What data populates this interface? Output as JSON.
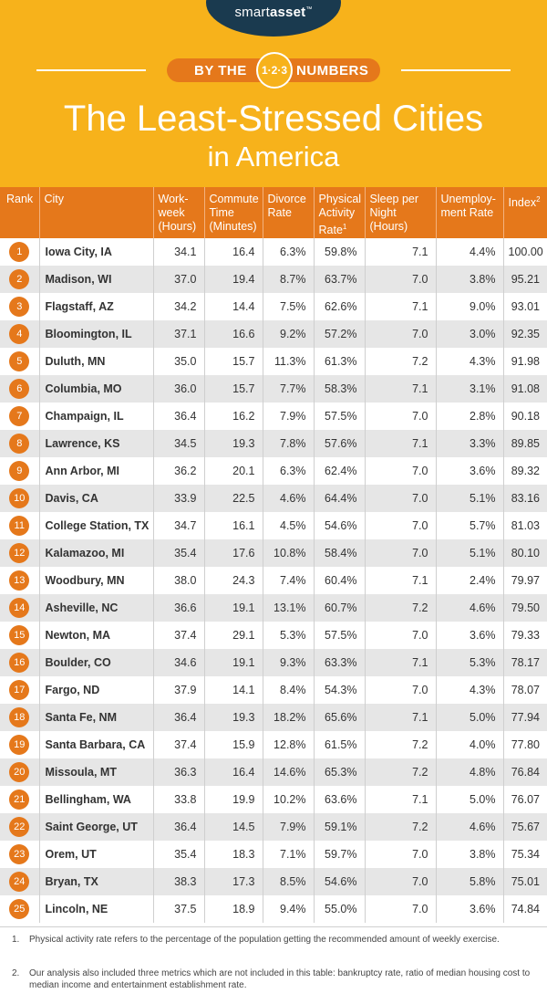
{
  "brand": {
    "name_light": "smart",
    "name_bold": "asset",
    "tm": "™"
  },
  "banner": {
    "left": "BY THE",
    "badge": "1·2·3",
    "right": "NUMBERS"
  },
  "title": {
    "line1": "The Least-Stressed Cities",
    "line2": "in America"
  },
  "colors": {
    "header_bg": "#f7b21b",
    "accent": "#e5781b",
    "logo_bg": "#1a3a4f",
    "row_alt": "#e6e6e6"
  },
  "chart_data": {
    "type": "table",
    "columns": [
      {
        "label": "Rank"
      },
      {
        "label": "City"
      },
      {
        "label": "Work-week (Hours)"
      },
      {
        "label": "Commute Time (Minutes)"
      },
      {
        "label": "Divorce Rate"
      },
      {
        "label": "Physical Activity Rate",
        "sup": "1"
      },
      {
        "label": "Sleep per Night (Hours)"
      },
      {
        "label": "Unemploy-ment Rate"
      },
      {
        "label": "Index",
        "sup": "2"
      }
    ],
    "rows": [
      [
        "1",
        "Iowa City, IA",
        "34.1",
        "16.4",
        "6.3%",
        "59.8%",
        "7.1",
        "4.4%",
        "100.00"
      ],
      [
        "2",
        "Madison, WI",
        "37.0",
        "19.4",
        "8.7%",
        "63.7%",
        "7.0",
        "3.8%",
        "95.21"
      ],
      [
        "3",
        "Flagstaff, AZ",
        "34.2",
        "14.4",
        "7.5%",
        "62.6%",
        "7.1",
        "9.0%",
        "93.01"
      ],
      [
        "4",
        "Bloomington, IL",
        "37.1",
        "16.6",
        "9.2%",
        "57.2%",
        "7.0",
        "3.0%",
        "92.35"
      ],
      [
        "5",
        "Duluth, MN",
        "35.0",
        "15.7",
        "11.3%",
        "61.3%",
        "7.2",
        "4.3%",
        "91.98"
      ],
      [
        "6",
        "Columbia, MO",
        "36.0",
        "15.7",
        "7.7%",
        "58.3%",
        "7.1",
        "3.1%",
        "91.08"
      ],
      [
        "7",
        "Champaign, IL",
        "36.4",
        "16.2",
        "7.9%",
        "57.5%",
        "7.0",
        "2.8%",
        "90.18"
      ],
      [
        "8",
        "Lawrence, KS",
        "34.5",
        "19.3",
        "7.8%",
        "57.6%",
        "7.1",
        "3.3%",
        "89.85"
      ],
      [
        "9",
        "Ann Arbor, MI",
        "36.2",
        "20.1",
        "6.3%",
        "62.4%",
        "7.0",
        "3.6%",
        "89.32"
      ],
      [
        "10",
        "Davis, CA",
        "33.9",
        "22.5",
        "4.6%",
        "64.4%",
        "7.0",
        "5.1%",
        "83.16"
      ],
      [
        "11",
        "College Station, TX",
        "34.7",
        "16.1",
        "4.5%",
        "54.6%",
        "7.0",
        "5.7%",
        "81.03"
      ],
      [
        "12",
        "Kalamazoo, MI",
        "35.4",
        "17.6",
        "10.8%",
        "58.4%",
        "7.0",
        "5.1%",
        "80.10"
      ],
      [
        "13",
        "Woodbury, MN",
        "38.0",
        "24.3",
        "7.4%",
        "60.4%",
        "7.1",
        "2.4%",
        "79.97"
      ],
      [
        "14",
        "Asheville, NC",
        "36.6",
        "19.1",
        "13.1%",
        "60.7%",
        "7.2",
        "4.6%",
        "79.50"
      ],
      [
        "15",
        "Newton, MA",
        "37.4",
        "29.1",
        "5.3%",
        "57.5%",
        "7.0",
        "3.6%",
        "79.33"
      ],
      [
        "16",
        "Boulder, CO",
        "34.6",
        "19.1",
        "9.3%",
        "63.3%",
        "7.1",
        "5.3%",
        "78.17"
      ],
      [
        "17",
        "Fargo, ND",
        "37.9",
        "14.1",
        "8.4%",
        "54.3%",
        "7.0",
        "4.3%",
        "78.07"
      ],
      [
        "18",
        "Santa Fe, NM",
        "36.4",
        "19.3",
        "18.2%",
        "65.6%",
        "7.1",
        "5.0%",
        "77.94"
      ],
      [
        "19",
        "Santa Barbara, CA",
        "37.4",
        "15.9",
        "12.8%",
        "61.5%",
        "7.2",
        "4.0%",
        "77.80"
      ],
      [
        "20",
        "Missoula, MT",
        "36.3",
        "16.4",
        "14.6%",
        "65.3%",
        "7.2",
        "4.8%",
        "76.84"
      ],
      [
        "21",
        "Bellingham, WA",
        "33.8",
        "19.9",
        "10.2%",
        "63.6%",
        "7.1",
        "5.0%",
        "76.07"
      ],
      [
        "22",
        "Saint George, UT",
        "36.4",
        "14.5",
        "7.9%",
        "59.1%",
        "7.2",
        "4.6%",
        "75.67"
      ],
      [
        "23",
        "Orem, UT",
        "35.4",
        "18.3",
        "7.1%",
        "59.7%",
        "7.0",
        "3.8%",
        "75.34"
      ],
      [
        "24",
        "Bryan, TX",
        "38.3",
        "17.3",
        "8.5%",
        "54.6%",
        "7.0",
        "5.8%",
        "75.01"
      ],
      [
        "25",
        "Lincoln, NE",
        "37.5",
        "18.9",
        "9.4%",
        "55.0%",
        "7.0",
        "3.6%",
        "74.84"
      ]
    ]
  },
  "footnotes": [
    {
      "num": "1.",
      "text": "Physical activity rate refers to the percentage of the population getting the recommended amount of weekly exercise."
    },
    {
      "num": "2.",
      "text": "Our analysis also included three metrics which are not included in this table: bankruptcy rate, ratio of median housing cost to median income and entertainment establishment rate."
    }
  ]
}
